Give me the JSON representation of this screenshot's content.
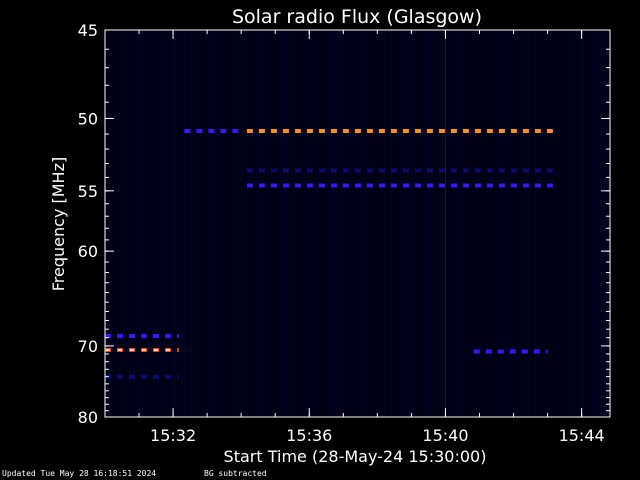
{
  "chart_data": {
    "type": "heatmap",
    "title": "Solar radio Flux (Glasgow)",
    "xlabel": "Start Time (28-May-24 15:30:00)",
    "ylabel": "Frequency [MHz]",
    "xlim": [
      "15:30:00",
      "15:44:50"
    ],
    "ylim": [
      80,
      45
    ],
    "x_ticks": [
      "15:32",
      "15:36",
      "15:40",
      "15:44"
    ],
    "y_ticks": [
      "45",
      "50",
      "55",
      "60",
      "70",
      "80"
    ],
    "y_scale": "reciprocal (frequency increases upward)",
    "grid": false,
    "colors": {
      "background": "#000000",
      "frame": "#ffffff",
      "plot_bg": "#000014",
      "low": "#0a0a6e",
      "mid": "#3a14ff",
      "high": "#ff8c1e",
      "peak": "#ff3c1e"
    },
    "features": [
      {
        "frequency_mhz": 50.8,
        "start": "15:32:20",
        "end": "15:34:00",
        "intensity": "mid",
        "dashed": true
      },
      {
        "frequency_mhz": 50.8,
        "start": "15:34:10",
        "end": "15:43:15",
        "intensity": "high",
        "dashed": true
      },
      {
        "frequency_mhz": 53.5,
        "start": "15:34:10",
        "end": "15:43:15",
        "intensity": "low",
        "dashed": true
      },
      {
        "frequency_mhz": 54.6,
        "start": "15:34:10",
        "end": "15:43:15",
        "intensity": "mid",
        "dashed": true
      },
      {
        "frequency_mhz": 68.8,
        "start": "15:30:00",
        "end": "15:32:10",
        "intensity": "mid",
        "dashed": true
      },
      {
        "frequency_mhz": 70.5,
        "start": "15:30:00",
        "end": "15:32:10",
        "intensity": "peak",
        "dashed": true
      },
      {
        "frequency_mhz": 74.0,
        "start": "15:30:00",
        "end": "15:32:10",
        "intensity": "low",
        "dashed": true
      },
      {
        "frequency_mhz": 70.7,
        "start": "15:40:50",
        "end": "15:43:00",
        "intensity": "mid",
        "dashed": true
      },
      {
        "frequency_mhz": 80.0,
        "start": "15:40:00",
        "end": "15:40:00",
        "intensity": "low",
        "dashed": false
      }
    ]
  },
  "footer": {
    "updated": "Updated Tue May 28 16:18:51 2024",
    "note": "BG subtracted"
  }
}
